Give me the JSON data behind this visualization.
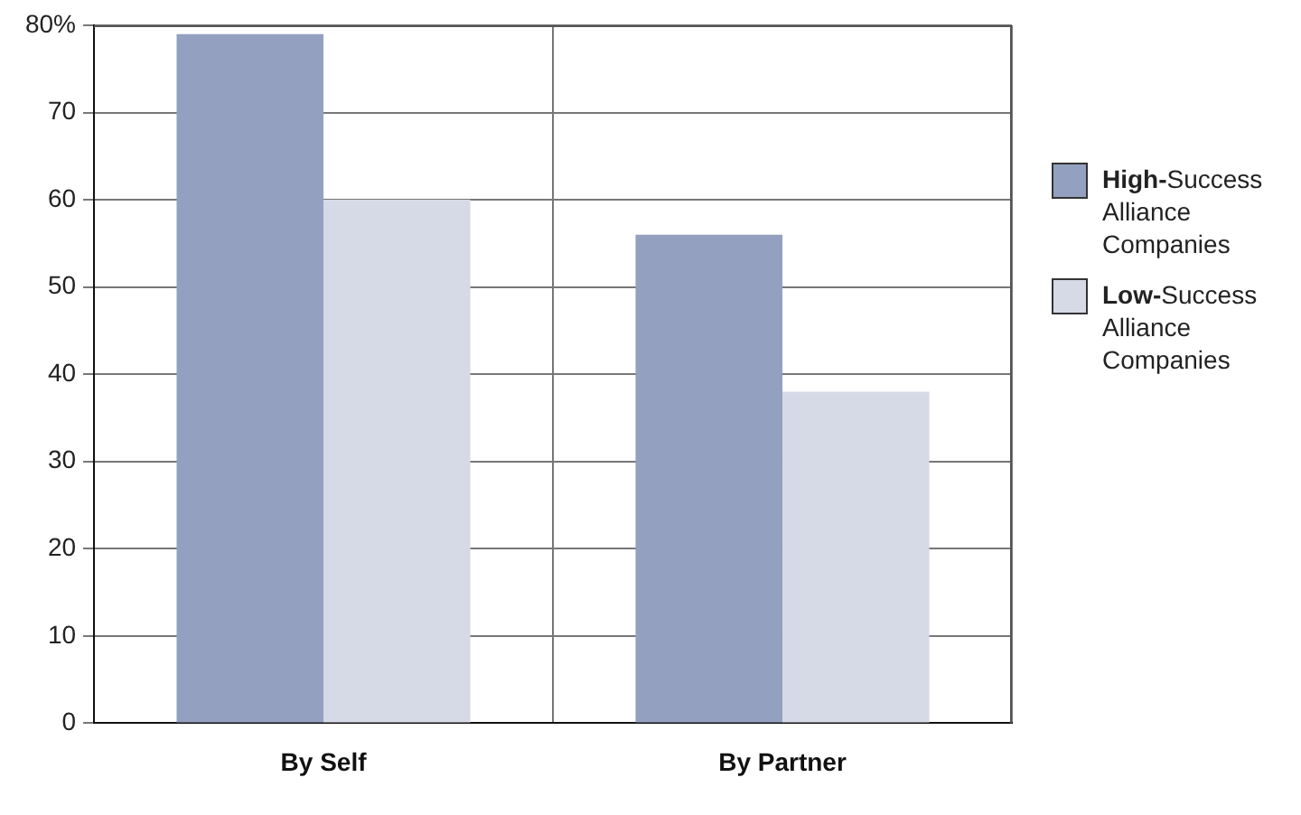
{
  "chart_data": {
    "type": "bar",
    "categories": [
      "By Self",
      "By Partner"
    ],
    "series": [
      {
        "name": "High-Success Alliance Companies",
        "color": "#93a0c0",
        "values": [
          79,
          56
        ]
      },
      {
        "name": "Low-Success Alliance Companies",
        "color": "#d5dae6",
        "values": [
          60,
          38
        ]
      }
    ],
    "ylim": [
      0,
      80
    ],
    "yticks": [
      0,
      10,
      20,
      30,
      40,
      50,
      60,
      70,
      {
        "value": 80,
        "label": "80%"
      }
    ],
    "grid": true,
    "legend": "right"
  }
}
